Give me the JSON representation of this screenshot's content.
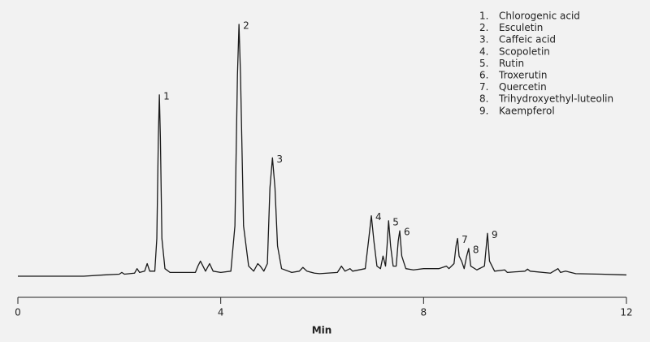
{
  "chart_data": {
    "type": "line",
    "xlabel": "Min",
    "color": "#1a1a1a",
    "xlim": [
      0,
      12
    ],
    "xticks": [
      0,
      4,
      8,
      12
    ],
    "ylim": [
      0,
      100
    ],
    "x": [
      0,
      1.3,
      1.7,
      2.0,
      2.05,
      2.1,
      2.3,
      2.35,
      2.4,
      2.5,
      2.55,
      2.6,
      2.7,
      2.74,
      2.77,
      2.79,
      2.81,
      2.84,
      2.9,
      3.0,
      3.5,
      3.55,
      3.6,
      3.65,
      3.7,
      3.78,
      3.85,
      4.0,
      4.2,
      4.28,
      4.33,
      4.36,
      4.39,
      4.45,
      4.55,
      4.65,
      4.73,
      4.78,
      4.85,
      4.92,
      4.97,
      5.02,
      5.07,
      5.12,
      5.2,
      5.4,
      5.55,
      5.62,
      5.7,
      5.85,
      5.95,
      6.3,
      6.38,
      6.45,
      6.55,
      6.6,
      6.85,
      6.92,
      6.97,
      7.02,
      7.08,
      7.15,
      7.2,
      7.25,
      7.28,
      7.31,
      7.35,
      7.4,
      7.46,
      7.5,
      7.53,
      7.57,
      7.65,
      7.8,
      8.0,
      8.3,
      8.45,
      8.5,
      8.6,
      8.64,
      8.67,
      8.7,
      8.75,
      8.8,
      8.85,
      8.89,
      8.93,
      9.05,
      9.2,
      9.26,
      9.3,
      9.4,
      9.6,
      9.65,
      10.0,
      10.05,
      10.1,
      10.5,
      10.65,
      10.7,
      10.8,
      11.0,
      11.5,
      12
    ],
    "values": [
      0,
      0,
      0.5,
      0.8,
      1.5,
      0.8,
      1.2,
      3,
      1.5,
      2,
      5,
      2,
      2,
      15,
      55,
      72,
      55,
      15,
      3,
      1.5,
      1.5,
      4,
      6,
      4,
      2,
      5,
      2,
      1.5,
      2,
      20,
      80,
      100,
      80,
      20,
      4,
      2,
      5,
      4,
      2,
      5,
      35,
      47,
      35,
      12,
      3,
      1.5,
      2,
      3.5,
      2,
      1.2,
      1,
      1.5,
      4,
      2,
      3,
      2,
      3,
      15,
      24,
      14,
      4,
      3,
      8,
      4,
      12,
      22,
      12,
      4,
      4,
      14,
      18,
      8,
      3,
      2.5,
      3,
      3,
      4,
      3,
      5,
      12,
      15,
      8,
      6,
      3,
      8,
      11,
      4,
      2.5,
      4,
      17,
      6,
      2,
      2.5,
      1.5,
      2,
      2.8,
      2,
      1.2,
      3,
      1.5,
      2,
      1,
      0.8,
      0.5
    ],
    "peak_labels": [
      {
        "text": "1",
        "x": 2.79,
        "y": 72
      },
      {
        "text": "2",
        "x": 4.36,
        "y": 100
      },
      {
        "text": "3",
        "x": 5.02,
        "y": 47
      },
      {
        "text": "4",
        "x": 6.97,
        "y": 24
      },
      {
        "text": "5",
        "x": 7.31,
        "y": 22
      },
      {
        "text": "6",
        "x": 7.53,
        "y": 18
      },
      {
        "text": "7",
        "x": 8.67,
        "y": 15
      },
      {
        "text": "8",
        "x": 8.89,
        "y": 11
      },
      {
        "text": "9",
        "x": 9.26,
        "y": 17
      }
    ],
    "legend": [
      {
        "number": "1.",
        "name": "Chlorogenic acid"
      },
      {
        "number": "2.",
        "name": "Esculetin"
      },
      {
        "number": "3.",
        "name": "Caffeic acid"
      },
      {
        "number": "4.",
        "name": "Scopoletin"
      },
      {
        "number": "5.",
        "name": "Rutin"
      },
      {
        "number": "6.",
        "name": "Troxerutin"
      },
      {
        "number": "7.",
        "name": "Quercetin"
      },
      {
        "number": "8.",
        "name": "Trihydroxyethyl-luteolin"
      },
      {
        "number": "9.",
        "name": "Kaempferol"
      }
    ]
  }
}
